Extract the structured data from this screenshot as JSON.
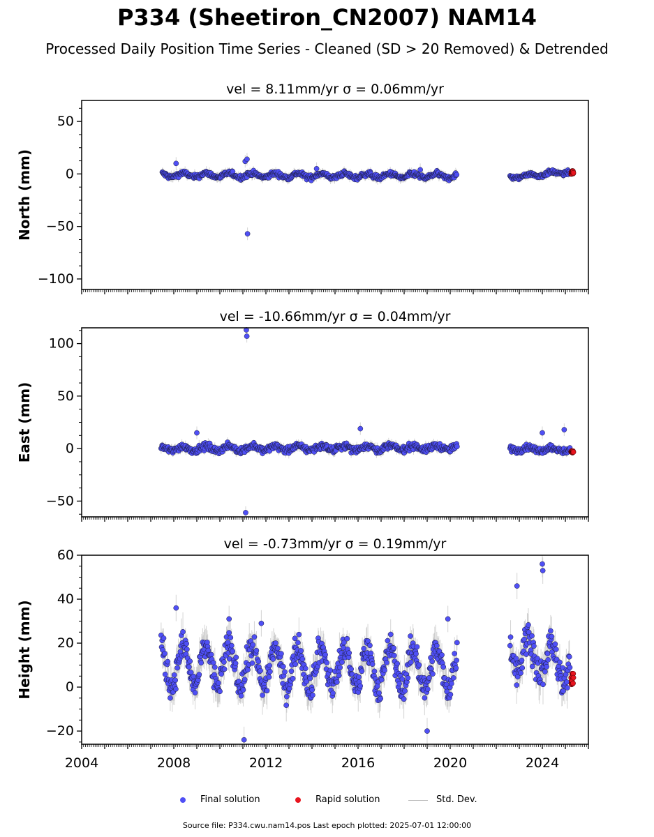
{
  "title": "P334 (Sheetiron_CN2007) NAM14",
  "subtitle": "Processed Daily Position Time Series - Cleaned (SD > 20 Removed) & Detrended",
  "legend": {
    "final": "Final solution",
    "rapid": "Rapid solution",
    "std": "Std. Dev."
  },
  "source": "Source file: P334.cwu.nam14.pos  Last epoch plotted: 2025-07-01 12:00:00",
  "colors": {
    "final": "#4f4ff5",
    "rapid": "#e8141e",
    "std": "#b8b8b8",
    "edge": "#1a1a3a"
  },
  "chart_data": [
    {
      "type": "scatter",
      "title": "vel = 8.11mm/yr   σ = 0.06mm/yr",
      "ylabel": "North (mm)",
      "xlim": [
        2004.0,
        2026.0
      ],
      "ylim": [
        -110,
        70
      ],
      "yticks": [
        50,
        0,
        -50,
        -100
      ],
      "ytick_labels": [
        "50",
        "0",
        "−50",
        "−100"
      ],
      "show_xtick_labels": false,
      "segments": [
        {
          "x": [
            2007.5,
            2020.3
          ],
          "mean": [
            -1,
            -2
          ],
          "amp": 2.0,
          "noise": 1.6,
          "err": 3.5
        },
        {
          "x": [
            2022.6,
            2025.2
          ],
          "mean": [
            -3,
            2
          ],
          "amp": 1.5,
          "noise": 1.4,
          "err": 3.0
        }
      ],
      "outliers": [
        {
          "x": 2011.1,
          "y": 12
        },
        {
          "x": 2011.18,
          "y": 14
        },
        {
          "x": 2011.2,
          "y": -57
        },
        {
          "x": 2008.1,
          "y": 10
        },
        {
          "x": 2014.2,
          "y": 5
        },
        {
          "x": 2018.7,
          "y": 4
        }
      ],
      "rapid": {
        "x": [
          2025.25,
          2025.35
        ],
        "y": [
          -1,
          3
        ]
      }
    },
    {
      "type": "scatter",
      "title": "vel = -10.66mm/yr   σ = 0.04mm/yr",
      "ylabel": "East (mm)",
      "xlim": [
        2004.0,
        2026.0
      ],
      "ylim": [
        -65,
        115
      ],
      "yticks": [
        100,
        50,
        0,
        -50
      ],
      "ytick_labels": [
        "100",
        "50",
        "0",
        "−50"
      ],
      "show_xtick_labels": false,
      "segments": [
        {
          "x": [
            2007.45,
            2020.3
          ],
          "mean": [
            0,
            1
          ],
          "amp": 2.0,
          "noise": 2.2,
          "err": 3.5
        },
        {
          "x": [
            2022.6,
            2025.2
          ],
          "mean": [
            0,
            -1
          ],
          "amp": 1.8,
          "noise": 2.0,
          "err": 3.0
        }
      ],
      "outliers": [
        {
          "x": 2011.15,
          "y": 113
        },
        {
          "x": 2011.17,
          "y": 107
        },
        {
          "x": 2011.12,
          "y": -61
        },
        {
          "x": 2016.1,
          "y": 19
        },
        {
          "x": 2009.0,
          "y": 15
        },
        {
          "x": 2024.95,
          "y": 18
        },
        {
          "x": 2024.0,
          "y": 15
        }
      ],
      "rapid": {
        "x": [
          2025.25,
          2025.35
        ],
        "y": [
          -4,
          -2
        ]
      }
    },
    {
      "type": "scatter",
      "title": "vel = -0.73mm/yr   σ = 0.19mm/yr",
      "ylabel": "Height (mm)",
      "xlim": [
        2004.0,
        2026.0
      ],
      "ylim": [
        -26,
        60
      ],
      "yticks": [
        60,
        40,
        20,
        0,
        -20
      ],
      "ytick_labels": [
        "60",
        "40",
        "20",
        "0",
        "−20"
      ],
      "show_xtick_labels": true,
      "xticks": [
        2004,
        2008,
        2012,
        2016,
        2020,
        2024
      ],
      "xtick_labels": [
        "2004",
        "2008",
        "2012",
        "2016",
        "2020",
        "2024"
      ],
      "segments": [
        {
          "x": [
            2007.45,
            2020.3
          ],
          "mean": [
            10,
            8
          ],
          "amp": 9.0,
          "noise": 4.5,
          "err": 6.0
        },
        {
          "x": [
            2022.6,
            2025.2
          ],
          "mean": [
            18,
            8
          ],
          "amp": 9.0,
          "noise": 5.0,
          "err": 6.5
        }
      ],
      "outliers": [
        {
          "x": 2024.0,
          "y": 56
        },
        {
          "x": 2024.02,
          "y": 53
        },
        {
          "x": 2022.9,
          "y": 46
        },
        {
          "x": 2011.05,
          "y": -24
        },
        {
          "x": 2008.1,
          "y": 36
        },
        {
          "x": 2010.4,
          "y": 31
        },
        {
          "x": 2011.8,
          "y": 29
        },
        {
          "x": 2019.0,
          "y": -20
        },
        {
          "x": 2019.9,
          "y": 31
        }
      ],
      "rapid": {
        "x": [
          2025.25,
          2025.35
        ],
        "y": [
          1,
          8
        ]
      }
    }
  ]
}
